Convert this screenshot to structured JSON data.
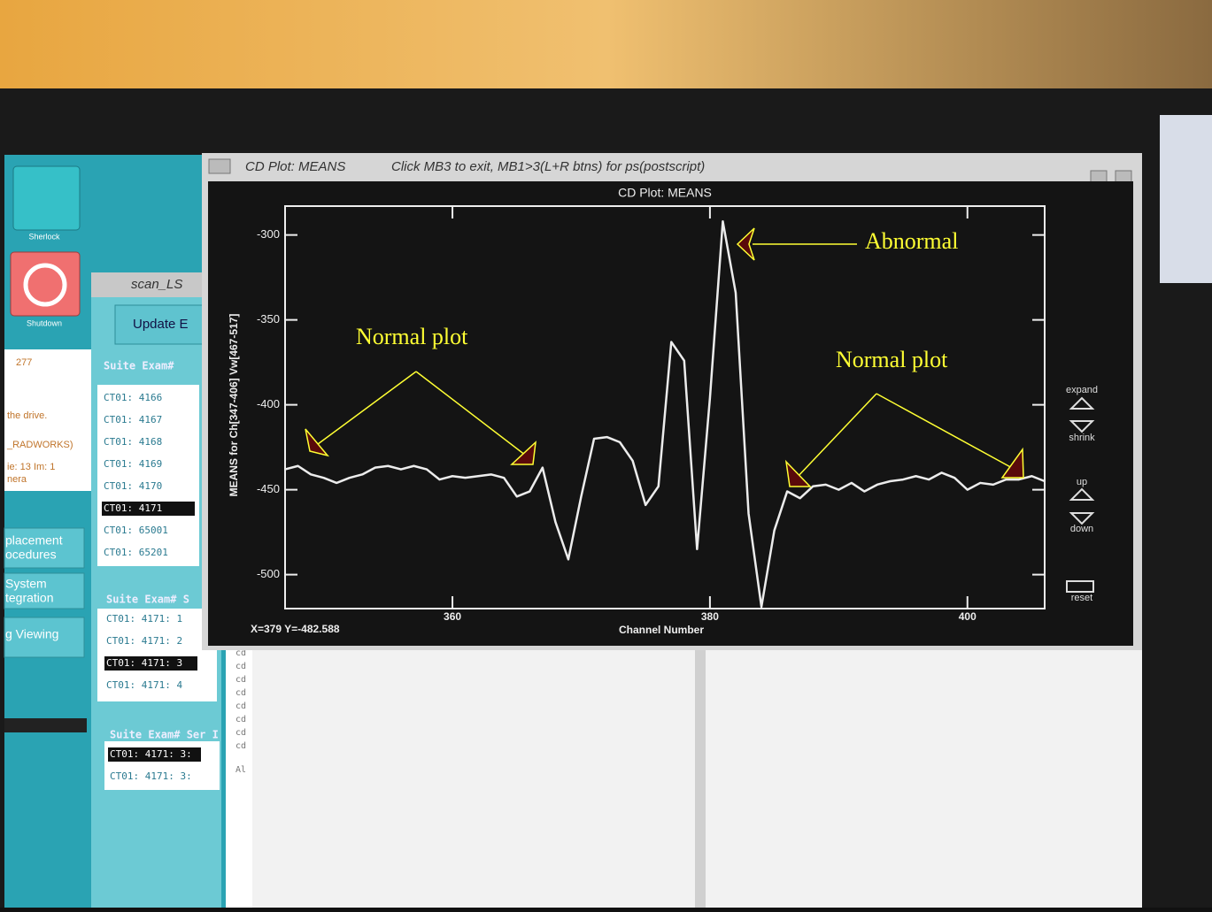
{
  "window": {
    "title": "CD Plot: MEANS",
    "instructions": "Click MB3 to exit, MB1>3(L+R btns) for ps(postscript)",
    "status": "X=379  Y=-482.588",
    "buttons": [
      "expand",
      "shrink",
      "up",
      "down",
      "reset"
    ]
  },
  "chart_data": {
    "type": "line",
    "title": "CD Plot: MEANS",
    "x_label": "Channel Number",
    "y_label": "MEANS for Ch[347-406] Vw[467-517]",
    "x": [
      347,
      348,
      349,
      350,
      351,
      352,
      353,
      354,
      355,
      356,
      357,
      358,
      359,
      360,
      361,
      362,
      363,
      364,
      365,
      366,
      367,
      368,
      369,
      370,
      371,
      372,
      373,
      374,
      375,
      376,
      377,
      378,
      379,
      380,
      381,
      382,
      383,
      384,
      385,
      386,
      387,
      388,
      389,
      390,
      391,
      392,
      393,
      394,
      395,
      396,
      397,
      398,
      399,
      400,
      401,
      402,
      403,
      404,
      405,
      406
    ],
    "values": [
      -438,
      -436,
      -441,
      -443,
      -446,
      -443,
      -441,
      -437,
      -436,
      -438,
      -436,
      -438,
      -444,
      -442,
      -443,
      -442,
      -441,
      -443,
      -454,
      -451,
      -437,
      -469,
      -491,
      -454,
      -420,
      -419,
      -422,
      -433,
      -459,
      -448,
      -363,
      -374,
      -485,
      -396,
      -292,
      -334,
      -464,
      -519,
      -474,
      -451,
      -455,
      -448,
      -447,
      -450,
      -446,
      -451,
      -447,
      -445,
      -444,
      -442,
      -444,
      -440,
      -443,
      -450,
      -446,
      -447,
      -444,
      -444,
      -442,
      -445
    ],
    "color": "#ececec",
    "xlim": [
      347,
      406
    ],
    "ylim": [
      -520,
      -283
    ],
    "xticks": [
      360,
      380,
      400
    ],
    "yticks": [
      -300,
      -350,
      -400,
      -450,
      -500
    ]
  },
  "annotations": {
    "abnormal": "Abnormal",
    "normal_left": "Normal plot",
    "normal_right": "Normal plot"
  },
  "desktop": {
    "icons": [
      "Sherlock",
      "Shutdown"
    ],
    "left_panel": [
      "277",
      "the drive.",
      "_RADWORKS)",
      "ie: 13  Im: 1",
      "nera"
    ],
    "menu": [
      "placement",
      "ocedures",
      "System",
      "tegration",
      "g Viewing"
    ],
    "console": [
      "cd",
      "cd",
      "cd",
      "cd",
      "cd",
      "cd",
      "cd",
      "cd",
      "Al"
    ]
  },
  "scan_window": {
    "title": "scan_LS",
    "button": "Update E",
    "list1_header": "Suite  Exam#",
    "list1": [
      "CT01:   4166",
      "CT01:   4167",
      "CT01:   4168",
      "CT01:   4169",
      "CT01:   4170",
      "CT01:   4171",
      "CT01:   65001",
      "CT01:   65201"
    ],
    "list2_header": "Suite  Exam#   S",
    "list2": [
      "CT01:  4171:   1",
      "CT01:  4171:   2",
      "CT01:  4171:   3",
      "CT01:  4171:   4"
    ],
    "list3_header": "Suite  Exam#  Ser  I",
    "list3": [
      "CT01:  4171:   3:",
      "CT01:  4171:   3:"
    ]
  }
}
